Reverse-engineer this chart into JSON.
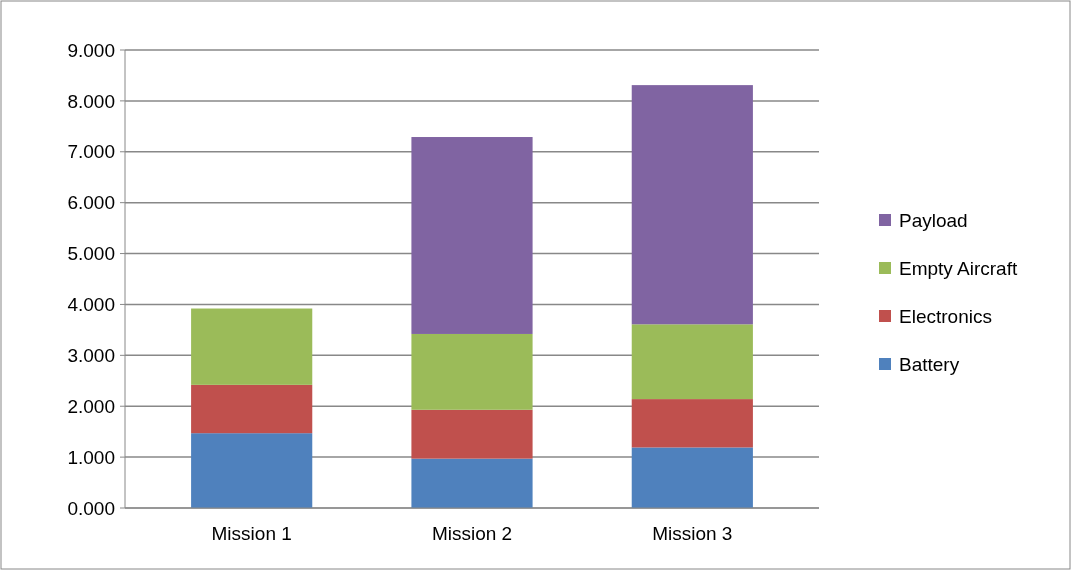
{
  "chart_data": {
    "type": "bar",
    "stacked": true,
    "categories": [
      "Mission 1",
      "Mission 2",
      "Mission 3"
    ],
    "series": [
      {
        "name": "Battery",
        "color": "#4f81bd",
        "values": [
          1.47,
          0.97,
          1.19
        ]
      },
      {
        "name": "Electronics",
        "color": "#c0504d",
        "values": [
          0.95,
          0.96,
          0.95
        ]
      },
      {
        "name": "Empty Aircraft",
        "color": "#9bbb59",
        "values": [
          1.5,
          1.49,
          1.47
        ]
      },
      {
        "name": "Payload",
        "color": "#8064a2",
        "values": [
          0,
          3.87,
          4.7
        ]
      }
    ],
    "ylim": [
      0,
      9
    ],
    "yticks": [
      {
        "value": 0,
        "label": "0.000"
      },
      {
        "value": 1,
        "label": "1.000"
      },
      {
        "value": 2,
        "label": "2.000"
      },
      {
        "value": 3,
        "label": "3.000"
      },
      {
        "value": 4,
        "label": "4.000"
      },
      {
        "value": 5,
        "label": "5.000"
      },
      {
        "value": 6,
        "label": "6.000"
      },
      {
        "value": 7,
        "label": "7.000"
      },
      {
        "value": 8,
        "label": "8.000"
      },
      {
        "value": 9,
        "label": "9.000"
      }
    ],
    "grid": "y",
    "legend": "right"
  }
}
